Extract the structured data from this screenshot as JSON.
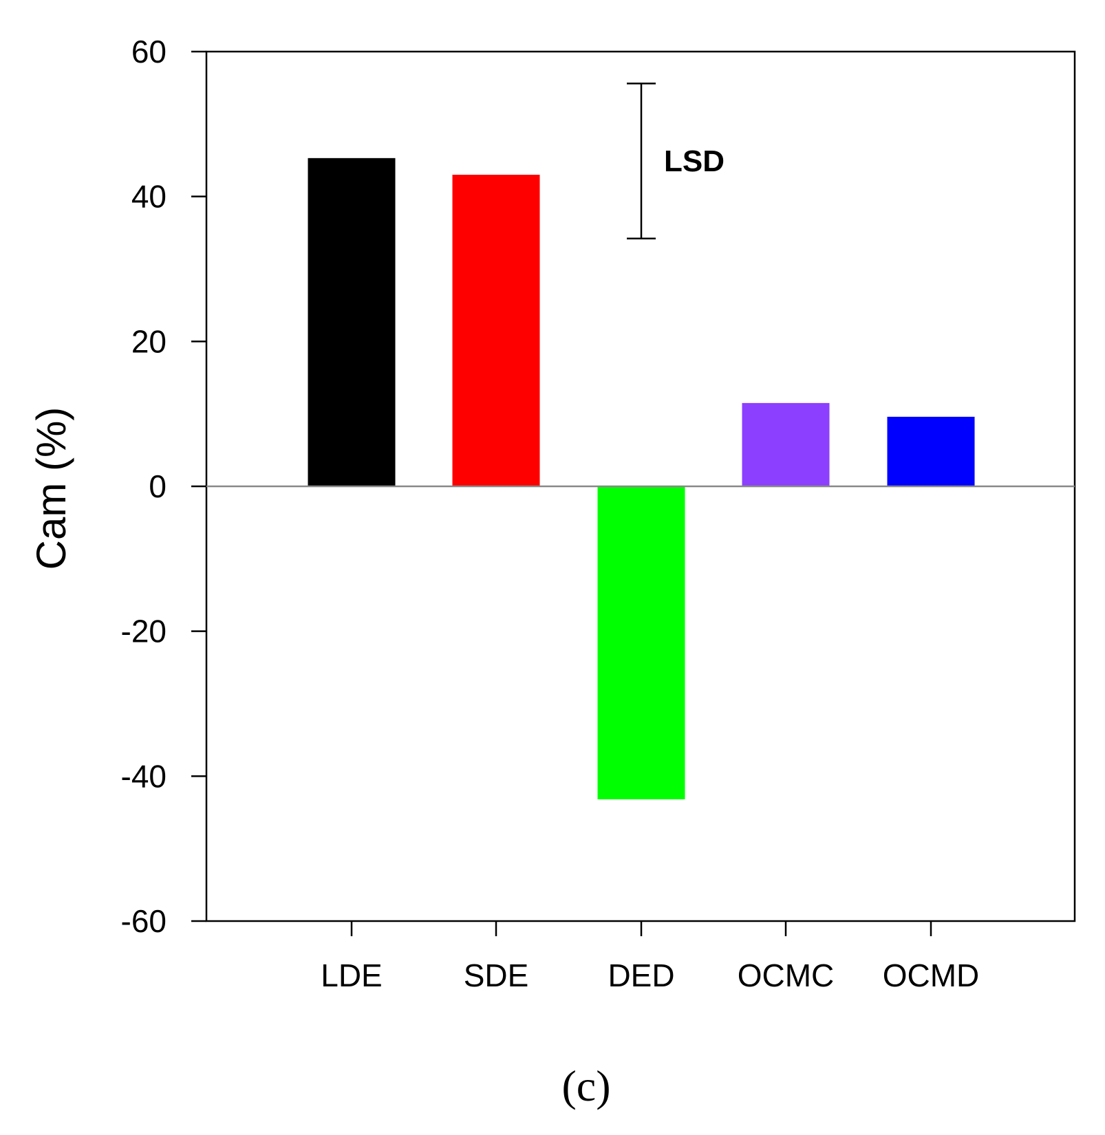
{
  "chart_data": {
    "type": "bar",
    "categories": [
      "LDE",
      "SDE",
      "DED",
      "OCMC",
      "OCMD"
    ],
    "values": [
      45.3,
      43.0,
      -43.2,
      11.5,
      9.6
    ],
    "colors": [
      "#000000",
      "#ff0000",
      "#00ff00",
      "#8c3fff",
      "#0000ff"
    ],
    "ylabel": "Cam (%)",
    "xlabel": "",
    "ylim": [
      -60,
      60
    ],
    "yticks": [
      "60",
      "40",
      "20",
      "0",
      "-20",
      "-40",
      "-60"
    ],
    "ytick_values": [
      60,
      40,
      20,
      0,
      -20,
      -40,
      -60
    ],
    "lsd": {
      "label": "LSD",
      "center": 44.9,
      "half_width": 10.7
    },
    "panel_label": "(c)"
  }
}
